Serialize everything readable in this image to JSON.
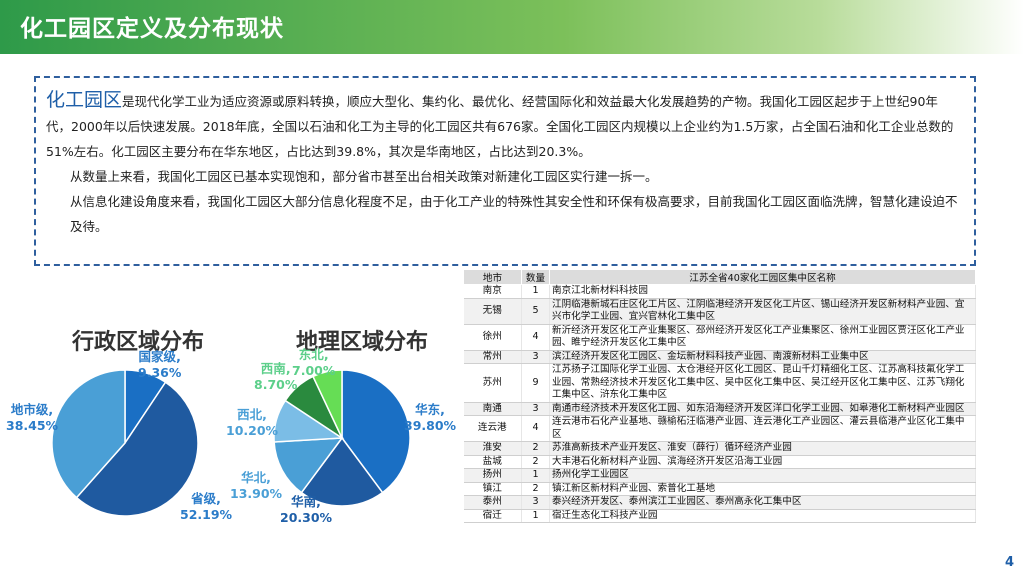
{
  "header": {
    "title": "化工园区定义及分布现状"
  },
  "intro": {
    "term": "化工园区",
    "p1": "是现代化学工业为适应资源或原料转换，顺应大型化、集约化、最优化、经营国际化和效益最大化发展趋势的产物。我国化工园区起步于上世纪90年代，2000年以后快速发展。2018年底，全国以石油和化工为主导的化工园区共有676家。全国化工园区内规模以上企业约为1.5万家，占全国石油和化工企业总数的51%左右。化工园区主要分布在华东地区，占比达到39.8%，其次是华南地区，占比达到20.3%。",
    "p2": "从数量上来看，我国化工园区已基本实现饱和，部分省市甚至出台相关政策对新建化工园区实行建一拆一。",
    "p3": "从信息化建设角度来看，我国化工园区大部分信息化程度不足，由于化工产业的特殊性其安全性和环保有极高要求，目前我国化工园区面临洗牌，智慧化建设迫不及待。"
  },
  "chart_data": [
    {
      "type": "pie",
      "title": "行政区域分布",
      "labels": [
        "国家级",
        "省级",
        "地市级"
      ],
      "values": [
        9.36,
        52.19,
        38.45
      ],
      "value_labels": [
        "9.36%",
        "52.19%",
        "38.45%"
      ],
      "colors": [
        "#1a6fc4",
        "#1f5aa0",
        "#4a9fd6"
      ]
    },
    {
      "type": "pie",
      "title": "地理区域分布",
      "labels": [
        "华东",
        "华南",
        "华北",
        "西北",
        "西南",
        "东北"
      ],
      "values": [
        39.8,
        20.3,
        13.9,
        10.2,
        8.7,
        7.0
      ],
      "value_labels": [
        "39.80%",
        "20.30%",
        "13.90%",
        "10.20%",
        "8.70%",
        "7.00%"
      ],
      "colors": [
        "#1a6fc4",
        "#1f5aa0",
        "#4a9fd6",
        "#7bbde6",
        "#2a8a3e",
        "#66dd55"
      ]
    }
  ],
  "table": {
    "headers": [
      "地市",
      "数量",
      "江苏全省40家化工园区集中区名称"
    ],
    "rows": [
      [
        "南京",
        "1",
        "南京江北新材料科技园"
      ],
      [
        "无锡",
        "5",
        "江阴临港新城石庄区化工片区、江阴临港经济开发区化工片区、锡山经济开发区新材料产业园、宜兴市化学工业园、宜兴官林化工集中区"
      ],
      [
        "徐州",
        "4",
        "新沂经济开发区化工产业集聚区、邳州经济开发区化工产业集聚区、徐州工业园区贾汪区化工产业园、睢宁经济开发区化工集中区"
      ],
      [
        "常州",
        "3",
        "滨江经济开发区化工园区、金坛新材料科技产业园、南渡新材料工业集中区"
      ],
      [
        "苏州",
        "9",
        "江苏扬子江国际化学工业园、太仓港经开区化工园区、昆山千灯精细化工区、江苏高科技氟化学工业园、常熟经济技术开发区化工集中区、吴中区化工集中区、吴江经开区化工集中区、江苏飞翔化工集中区、浒东化工集中区"
      ],
      [
        "南通",
        "3",
        "南通市经济技术开发区化工园、如东沿海经济开发区洋口化学工业园、如皋港化工新材料产业园区"
      ],
      [
        "连云港",
        "4",
        "连云港市石化产业基地、赣榆柘汪临港产业园、连云港化工产业园区、灌云县临港产业区化工集中区"
      ],
      [
        "淮安",
        "2",
        "苏淮高新技术产业开发区、淮安（薛行）循环经济产业园"
      ],
      [
        "盐城",
        "2",
        "大丰港石化新材料产业园、滨海经济开发区沿海工业园"
      ],
      [
        "扬州",
        "1",
        "扬州化学工业园区"
      ],
      [
        "镇江",
        "2",
        "镇江新区新材料产业园、索普化工基地"
      ],
      [
        "泰州",
        "3",
        "泰兴经济开发区、泰州滨江工业园区、泰州高永化工集中区"
      ],
      [
        "宿迁",
        "1",
        "宿迁生态化工科技产业园"
      ]
    ]
  },
  "page": {
    "number": "4"
  },
  "colors": {
    "accent_blue": "#1f5fa8",
    "header_green": "#2e9a49",
    "label_blue": "#2b7cc9",
    "label_green": "#5ccf8a"
  }
}
